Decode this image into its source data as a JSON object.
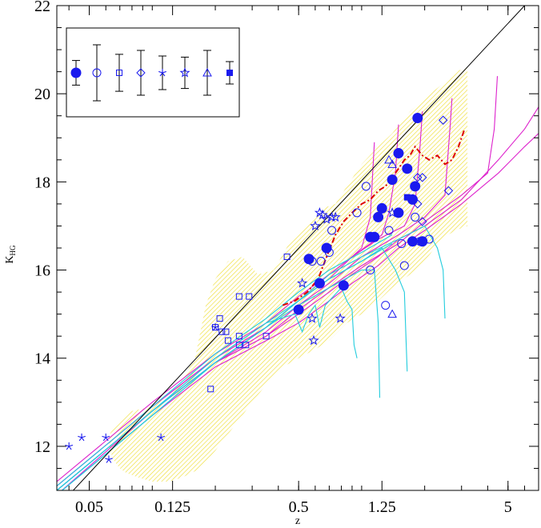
{
  "chart_data": {
    "type": "scatter",
    "xlabel": "z",
    "ylabel": "K",
    "ylabel_sub": "HG",
    "xscale": "log",
    "xlim": [
      0.035,
      7.0
    ],
    "ylim": [
      11.0,
      22.0
    ],
    "x_ticks": [
      {
        "value": 0.05,
        "label": "0.05"
      },
      {
        "value": 0.125,
        "label": "0.125"
      },
      {
        "value": 0.5,
        "label": "0.5"
      },
      {
        "value": 1.25,
        "label": "1.25"
      },
      {
        "value": 5,
        "label": "5"
      }
    ],
    "y_ticks": [
      {
        "value": 12,
        "label": "12"
      },
      {
        "value": 14,
        "label": "14"
      },
      {
        "value": 16,
        "label": "16"
      },
      {
        "value": 18,
        "label": "18"
      },
      {
        "value": 20,
        "label": "20"
      },
      {
        "value": 22,
        "label": "22"
      }
    ],
    "colors": {
      "points": "#1a1aee",
      "shade": "#f0e040",
      "hubble": "#000000",
      "mean": "#dd0000",
      "magenta": "#dd22cc",
      "cyan": "#22ccdd"
    },
    "legend": {
      "placement": "top-left",
      "items": [
        {
          "marker": "filled-circle",
          "err": 0.22
        },
        {
          "marker": "open-circle",
          "err": 0.5
        },
        {
          "marker": "open-square",
          "err": 0.33
        },
        {
          "marker": "open-diamond",
          "err": 0.4
        },
        {
          "marker": "asterisk",
          "err": 0.3
        },
        {
          "marker": "open-star",
          "err": 0.28
        },
        {
          "marker": "open-triangle",
          "err": 0.4
        },
        {
          "marker": "filled-square",
          "err": 0.2
        }
      ]
    },
    "shaded_region": {
      "upper": [
        [
          0.08,
          12.8
        ],
        [
          0.1,
          12.9
        ],
        [
          0.13,
          13.3
        ],
        [
          0.16,
          14.0
        ],
        [
          0.18,
          15.2
        ],
        [
          0.2,
          15.8
        ],
        [
          0.23,
          16.2
        ],
        [
          0.27,
          16.3
        ],
        [
          0.32,
          15.9
        ],
        [
          0.38,
          16.0
        ],
        [
          0.45,
          16.6
        ],
        [
          0.55,
          17.0
        ],
        [
          0.65,
          17.4
        ],
        [
          0.75,
          17.5
        ],
        [
          0.85,
          17.9
        ],
        [
          1.0,
          18.4
        ],
        [
          1.2,
          18.8
        ],
        [
          1.4,
          19.1
        ],
        [
          1.7,
          19.6
        ],
        [
          2.0,
          19.9
        ],
        [
          2.4,
          20.2
        ],
        [
          2.8,
          20.5
        ],
        [
          3.2,
          20.6
        ],
        [
          3.2,
          17.0
        ]
      ],
      "lower": [
        [
          3.2,
          17.0
        ],
        [
          2.8,
          16.9
        ],
        [
          2.4,
          16.7
        ],
        [
          2.0,
          16.2
        ],
        [
          1.7,
          15.9
        ],
        [
          1.4,
          15.6
        ],
        [
          1.2,
          15.3
        ],
        [
          1.0,
          15.0
        ],
        [
          0.85,
          14.8
        ],
        [
          0.7,
          14.4
        ],
        [
          0.6,
          14.2
        ],
        [
          0.5,
          14.0
        ],
        [
          0.42,
          13.8
        ],
        [
          0.35,
          13.4
        ],
        [
          0.3,
          13.0
        ],
        [
          0.25,
          12.5
        ],
        [
          0.2,
          11.9
        ],
        [
          0.17,
          11.5
        ],
        [
          0.14,
          11.3
        ],
        [
          0.12,
          11.2
        ],
        [
          0.1,
          11.2
        ],
        [
          0.085,
          11.3
        ],
        [
          0.075,
          11.4
        ],
        [
          0.07,
          11.5
        ],
        [
          0.065,
          11.7
        ],
        [
          0.062,
          12.0
        ],
        [
          0.063,
          12.3
        ],
        [
          0.068,
          12.5
        ],
        [
          0.08,
          12.8
        ]
      ]
    },
    "hubble_line": [
      [
        0.035,
        10.6
      ],
      [
        6.0,
        22.0
      ]
    ],
    "mean_curve": [
      [
        0.42,
        15.2
      ],
      [
        0.48,
        15.3
      ],
      [
        0.55,
        15.5
      ],
      [
        0.62,
        15.8
      ],
      [
        0.68,
        16.3
      ],
      [
        0.75,
        16.8
      ],
      [
        0.82,
        17.1
      ],
      [
        0.9,
        17.3
      ],
      [
        1.0,
        17.5
      ],
      [
        1.1,
        17.6
      ],
      [
        1.2,
        17.8
      ],
      [
        1.3,
        17.9
      ],
      [
        1.4,
        18.1
      ],
      [
        1.5,
        18.3
      ],
      [
        1.6,
        18.5
      ],
      [
        1.7,
        18.6
      ],
      [
        1.8,
        18.8
      ],
      [
        1.95,
        18.6
      ],
      [
        2.1,
        18.5
      ],
      [
        2.3,
        18.6
      ],
      [
        2.5,
        18.4
      ],
      [
        2.7,
        18.5
      ],
      [
        2.9,
        18.8
      ],
      [
        3.1,
        19.2
      ]
    ],
    "magenta_curves": [
      [
        [
          0.035,
          10.9
        ],
        [
          0.1,
          12.7
        ],
        [
          0.2,
          13.8
        ],
        [
          0.35,
          14.4
        ],
        [
          0.5,
          14.8
        ],
        [
          0.7,
          15.3
        ],
        [
          0.9,
          15.7
        ],
        [
          1.2,
          16.1
        ],
        [
          1.5,
          16.5
        ],
        [
          2.0,
          16.9
        ],
        [
          3.0,
          17.5
        ],
        [
          4.5,
          18.2
        ],
        [
          6.0,
          18.8
        ],
        [
          7.0,
          19.1
        ]
      ],
      [
        [
          0.035,
          11.0
        ],
        [
          0.1,
          12.8
        ],
        [
          0.2,
          13.9
        ],
        [
          0.35,
          14.5
        ],
        [
          0.5,
          15.0
        ],
        [
          0.7,
          15.5
        ],
        [
          0.9,
          15.9
        ],
        [
          1.2,
          16.3
        ],
        [
          1.5,
          16.7
        ],
        [
          2.0,
          17.0
        ],
        [
          3.0,
          17.6
        ],
        [
          4.5,
          18.5
        ],
        [
          6.0,
          19.2
        ],
        [
          7.0,
          19.7
        ]
      ],
      [
        [
          0.035,
          11.1
        ],
        [
          0.1,
          12.9
        ],
        [
          0.2,
          14.0
        ],
        [
          0.35,
          14.7
        ],
        [
          0.5,
          15.3
        ],
        [
          0.7,
          15.8
        ],
        [
          0.9,
          16.3
        ],
        [
          1.1,
          16.6
        ],
        [
          1.25,
          16.8
        ],
        [
          1.35,
          17.3
        ],
        [
          1.45,
          18.2
        ],
        [
          1.5,
          19.3
        ]
      ],
      [
        [
          0.035,
          11.2
        ],
        [
          0.1,
          13.0
        ],
        [
          0.2,
          14.1
        ],
        [
          0.35,
          14.8
        ],
        [
          0.5,
          15.4
        ],
        [
          0.7,
          15.9
        ],
        [
          0.9,
          16.3
        ],
        [
          1.0,
          16.5
        ],
        [
          1.1,
          17.2
        ],
        [
          1.15,
          18.9
        ]
      ],
      [
        [
          0.035,
          11.1
        ],
        [
          0.1,
          12.9
        ],
        [
          0.2,
          14.0
        ],
        [
          0.35,
          14.7
        ],
        [
          0.5,
          15.3
        ],
        [
          0.7,
          15.9
        ],
        [
          0.9,
          16.3
        ],
        [
          1.2,
          16.7
        ],
        [
          1.6,
          17.0
        ],
        [
          1.8,
          17.5
        ],
        [
          1.9,
          18.8
        ],
        [
          1.95,
          19.6
        ]
      ],
      [
        [
          0.035,
          11.0
        ],
        [
          0.1,
          12.8
        ],
        [
          0.2,
          13.9
        ],
        [
          0.35,
          14.6
        ],
        [
          0.5,
          15.2
        ],
        [
          0.7,
          15.7
        ],
        [
          1.0,
          16.3
        ],
        [
          1.5,
          16.8
        ],
        [
          2.0,
          17.2
        ],
        [
          2.5,
          17.7
        ],
        [
          2.65,
          19.3
        ],
        [
          2.7,
          19.9
        ]
      ],
      [
        [
          0.035,
          10.9
        ],
        [
          0.1,
          12.8
        ],
        [
          0.2,
          13.9
        ],
        [
          0.35,
          14.5
        ],
        [
          0.5,
          15.1
        ],
        [
          0.7,
          15.6
        ],
        [
          1.0,
          16.1
        ],
        [
          1.5,
          16.6
        ],
        [
          2.0,
          17.1
        ],
        [
          3.0,
          17.7
        ],
        [
          4.0,
          18.2
        ],
        [
          4.3,
          19.2
        ],
        [
          4.45,
          20.4
        ]
      ]
    ],
    "cyan_curves": [
      [
        [
          0.035,
          11.0
        ],
        [
          0.1,
          12.8
        ],
        [
          0.2,
          14.0
        ],
        [
          0.35,
          14.8
        ],
        [
          0.48,
          15.0
        ],
        [
          0.52,
          14.6
        ],
        [
          0.56,
          15.0
        ],
        [
          0.6,
          15.2
        ],
        [
          0.63,
          14.7
        ],
        [
          0.67,
          15.2
        ],
        [
          0.8,
          15.6
        ],
        [
          0.85,
          15.3
        ],
        [
          0.9,
          15.1
        ],
        [
          0.92,
          14.3
        ],
        [
          0.95,
          14.0
        ]
      ],
      [
        [
          0.035,
          10.9
        ],
        [
          0.1,
          12.7
        ],
        [
          0.2,
          13.9
        ],
        [
          0.35,
          14.7
        ],
        [
          0.5,
          15.2
        ],
        [
          0.7,
          15.6
        ],
        [
          1.0,
          16.0
        ],
        [
          1.15,
          16.0
        ],
        [
          1.2,
          14.8
        ],
        [
          1.22,
          13.1
        ]
      ],
      [
        [
          0.035,
          10.9
        ],
        [
          0.1,
          12.7
        ],
        [
          0.2,
          13.9
        ],
        [
          0.35,
          14.7
        ],
        [
          0.5,
          15.3
        ],
        [
          0.7,
          15.8
        ],
        [
          1.0,
          16.2
        ],
        [
          1.25,
          16.5
        ],
        [
          1.45,
          16.0
        ],
        [
          1.6,
          15.5
        ],
        [
          1.63,
          14.4
        ],
        [
          1.65,
          13.7
        ]
      ],
      [
        [
          0.035,
          11.0
        ],
        [
          0.1,
          12.8
        ],
        [
          0.2,
          13.9
        ],
        [
          0.35,
          14.7
        ],
        [
          0.5,
          15.3
        ],
        [
          0.7,
          15.9
        ],
        [
          1.0,
          16.3
        ],
        [
          1.5,
          16.7
        ],
        [
          2.0,
          17.0
        ],
        [
          2.3,
          16.5
        ],
        [
          2.45,
          16.0
        ],
        [
          2.5,
          14.9
        ]
      ],
      [
        [
          0.035,
          11.0
        ],
        [
          0.1,
          12.8
        ],
        [
          0.2,
          14.0
        ],
        [
          0.35,
          14.8
        ],
        [
          0.5,
          15.3
        ],
        [
          0.7,
          15.8
        ],
        [
          1.0,
          16.2
        ],
        [
          1.4,
          16.6
        ]
      ],
      [
        [
          0.035,
          11.1
        ],
        [
          0.1,
          12.9
        ],
        [
          0.2,
          14.1
        ],
        [
          0.35,
          14.9
        ],
        [
          0.5,
          15.5
        ],
        [
          0.7,
          16.0
        ],
        [
          1.0,
          16.4
        ],
        [
          1.4,
          16.8
        ]
      ]
    ],
    "series": [
      {
        "marker": "filled-circle",
        "points": [
          [
            0.5,
            15.1
          ],
          [
            0.56,
            16.25
          ],
          [
            0.63,
            15.7
          ],
          [
            0.68,
            16.5
          ],
          [
            0.82,
            15.65
          ],
          [
            1.1,
            16.75
          ],
          [
            1.15,
            16.75
          ],
          [
            1.2,
            17.2
          ],
          [
            1.25,
            17.4
          ],
          [
            1.4,
            18.05
          ],
          [
            1.5,
            17.3
          ],
          [
            1.5,
            18.65
          ],
          [
            1.65,
            18.3
          ],
          [
            1.75,
            17.6
          ],
          [
            1.8,
            17.9
          ],
          [
            1.85,
            19.45
          ],
          [
            1.75,
            16.65
          ],
          [
            1.95,
            16.65
          ]
        ]
      },
      {
        "marker": "open-circle",
        "points": [
          [
            0.58,
            16.2
          ],
          [
            0.64,
            16.2
          ],
          [
            0.7,
            16.4
          ],
          [
            0.72,
            16.9
          ],
          [
            0.95,
            17.3
          ],
          [
            1.05,
            17.9
          ],
          [
            1.1,
            16.0
          ],
          [
            1.3,
            15.2
          ],
          [
            1.35,
            16.9
          ],
          [
            1.55,
            16.6
          ],
          [
            1.6,
            16.1
          ],
          [
            1.8,
            17.2
          ],
          [
            2.1,
            16.7
          ],
          [
            1.9,
            16.65
          ]
        ]
      },
      {
        "marker": "open-square",
        "points": [
          [
            0.2,
            14.7
          ],
          [
            0.21,
            14.9
          ],
          [
            0.215,
            14.6
          ],
          [
            0.225,
            14.6
          ],
          [
            0.23,
            14.4
          ],
          [
            0.26,
            14.3
          ],
          [
            0.26,
            14.5
          ],
          [
            0.26,
            15.4
          ],
          [
            0.28,
            14.3
          ],
          [
            0.29,
            15.4
          ],
          [
            0.35,
            14.5
          ],
          [
            0.44,
            16.3
          ],
          [
            0.19,
            13.3
          ]
        ]
      },
      {
        "marker": "open-diamond",
        "points": [
          [
            1.85,
            18.1
          ],
          [
            1.95,
            18.1
          ],
          [
            1.85,
            17.5
          ],
          [
            1.95,
            17.1
          ],
          [
            2.45,
            19.4
          ],
          [
            2.6,
            17.8
          ]
        ]
      },
      {
        "marker": "asterisk",
        "points": [
          [
            0.04,
            12.0
          ],
          [
            0.046,
            12.2
          ],
          [
            0.06,
            12.2
          ],
          [
            0.062,
            11.7
          ],
          [
            0.11,
            12.2
          ],
          [
            0.2,
            14.7
          ]
        ]
      },
      {
        "marker": "open-star",
        "points": [
          [
            0.52,
            15.7
          ],
          [
            0.58,
            14.9
          ],
          [
            0.59,
            14.4
          ],
          [
            0.6,
            17.0
          ],
          [
            0.63,
            17.3
          ],
          [
            0.65,
            17.25
          ],
          [
            0.68,
            17.15
          ],
          [
            0.72,
            17.2
          ],
          [
            0.75,
            17.2
          ],
          [
            0.79,
            14.9
          ],
          [
            1.4,
            17.3
          ]
        ]
      },
      {
        "marker": "open-triangle",
        "points": [
          [
            1.35,
            18.5
          ],
          [
            1.4,
            18.4
          ],
          [
            1.4,
            15.0
          ]
        ]
      },
      {
        "marker": "filled-square",
        "points": [
          [
            1.65,
            17.65
          ]
        ]
      }
    ]
  }
}
